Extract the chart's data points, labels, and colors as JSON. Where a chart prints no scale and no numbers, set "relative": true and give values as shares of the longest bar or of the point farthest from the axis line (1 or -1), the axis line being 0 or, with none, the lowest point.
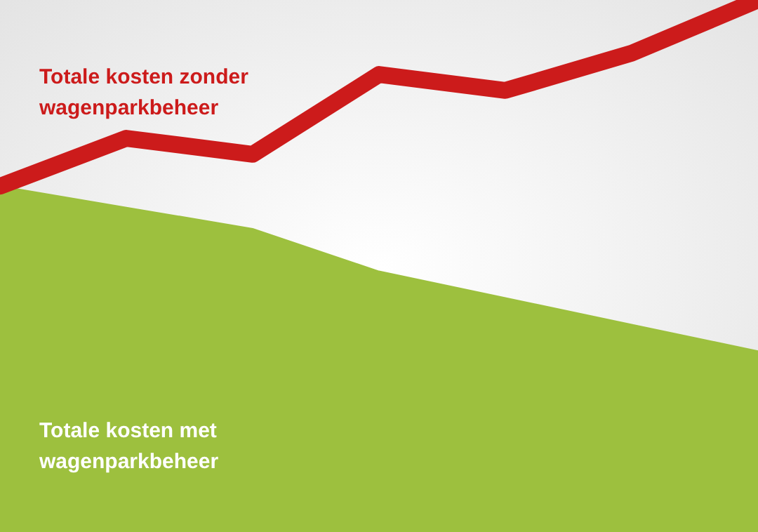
{
  "chart_data": {
    "type": "line",
    "relative": true,
    "categories": [
      null,
      null,
      null,
      null,
      null,
      null,
      null
    ],
    "legend": false,
    "grid": false,
    "marker": "none",
    "line_style": "solid",
    "series": [
      {
        "name": "Totale kosten met wagenparkbeheer",
        "type": "area",
        "color": "#9dc03e",
        "values": [
          0.65,
          0.61,
          0.57,
          0.49,
          0.44,
          0.39,
          0.34
        ]
      },
      {
        "name": "Totale kosten zonder wagenparkbeheer",
        "color": "#cc1b1b",
        "values": [
          0.65,
          0.74,
          0.71,
          0.86,
          0.83,
          0.9,
          1
        ]
      }
    ]
  }
}
